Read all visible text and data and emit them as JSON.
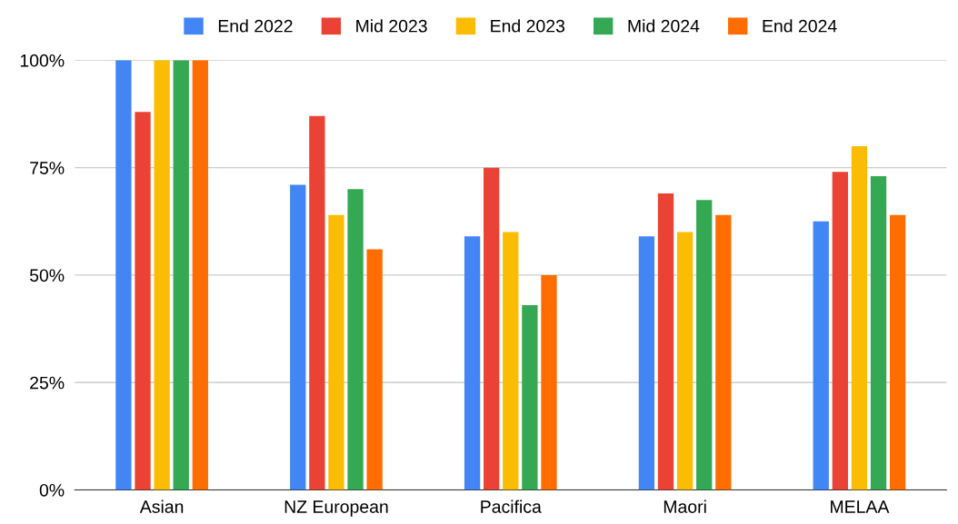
{
  "chart_data": {
    "type": "bar",
    "categories": [
      "Asian",
      "NZ European",
      "Pacifica",
      "Maori",
      "MELAA"
    ],
    "series": [
      {
        "name": "End 2022",
        "color": "#4285f4",
        "values": [
          100,
          71,
          59,
          59,
          62.5
        ]
      },
      {
        "name": "Mid 2023",
        "color": "#ea4335",
        "values": [
          88,
          87,
          75,
          69,
          74
        ]
      },
      {
        "name": "End 2023",
        "color": "#fbbc04",
        "values": [
          100,
          64,
          60,
          60,
          80
        ]
      },
      {
        "name": "Mid 2024",
        "color": "#34a853",
        "values": [
          100,
          70,
          43,
          67.5,
          73
        ]
      },
      {
        "name": "End 2024",
        "color": "#ff6d01",
        "values": [
          100,
          56,
          50,
          64,
          64
        ]
      }
    ],
    "ylim": [
      0,
      100
    ],
    "yticks": [
      {
        "value": 0,
        "label": "0%"
      },
      {
        "value": 25,
        "label": "25%"
      },
      {
        "value": 50,
        "label": "50%"
      },
      {
        "value": 75,
        "label": "75%"
      },
      {
        "value": 100,
        "label": "100%"
      }
    ],
    "grid": "y",
    "legend": "top"
  }
}
